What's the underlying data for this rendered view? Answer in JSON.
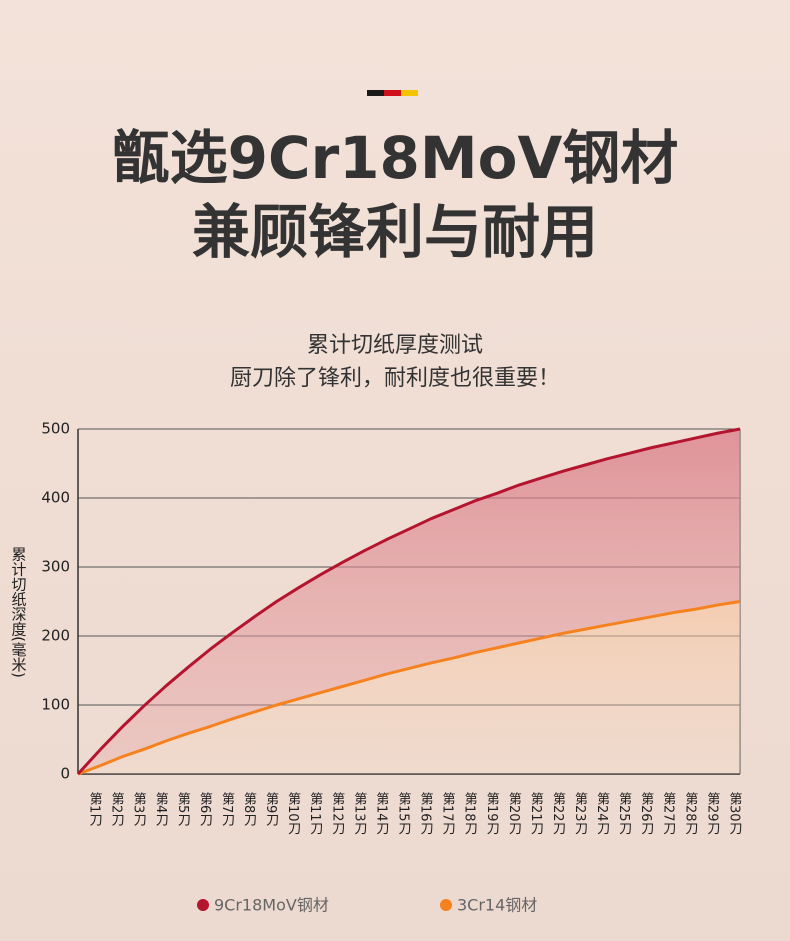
{
  "chart_data": {
    "type": "line",
    "title_lines": [
      "甑选9Cr18MoV钢材",
      "兼顾锋利与耐用"
    ],
    "subtitle_lines": [
      "累计切纸厚度测试",
      "厨刀除了锋利，耐利度也很重要！"
    ],
    "ylabel": "累计切纸深度(毫米)",
    "categories": [
      "第1刀",
      "第2刀",
      "第3刀",
      "第4刀",
      "第5刀",
      "第6刀",
      "第7刀",
      "第8刀",
      "第9刀",
      "第10刀",
      "第11刀",
      "第12刀",
      "第13刀",
      "第14刀",
      "第15刀",
      "第16刀",
      "第17刀",
      "第18刀",
      "第19刀",
      "第20刀",
      "第21刀",
      "第22刀",
      "第23刀",
      "第24刀",
      "第25刀",
      "第26刀",
      "第27刀",
      "第28刀",
      "第29刀",
      "第30刀"
    ],
    "series": [
      {
        "name": "9Cr18MoV钢材",
        "color": "#b5142f",
        "values": [
          35,
          68,
          99,
          128,
          155,
          181,
          205,
          228,
          250,
          270,
          289,
          307,
          324,
          340,
          355,
          370,
          383,
          396,
          407,
          419,
          429,
          439,
          448,
          457,
          465,
          473,
          480,
          487,
          494,
          500
        ]
      },
      {
        "name": "3Cr14钢材",
        "color": "#f5821f",
        "values": [
          12,
          25,
          36,
          48,
          59,
          69,
          80,
          90,
          100,
          109,
          118,
          127,
          136,
          145,
          153,
          161,
          168,
          176,
          183,
          190,
          197,
          204,
          210,
          216,
          222,
          228,
          234,
          239,
          245,
          250
        ]
      }
    ],
    "ylim": [
      0,
      500
    ],
    "yticks": [
      0,
      100,
      200,
      300,
      400,
      500
    ],
    "grid": true
  }
}
